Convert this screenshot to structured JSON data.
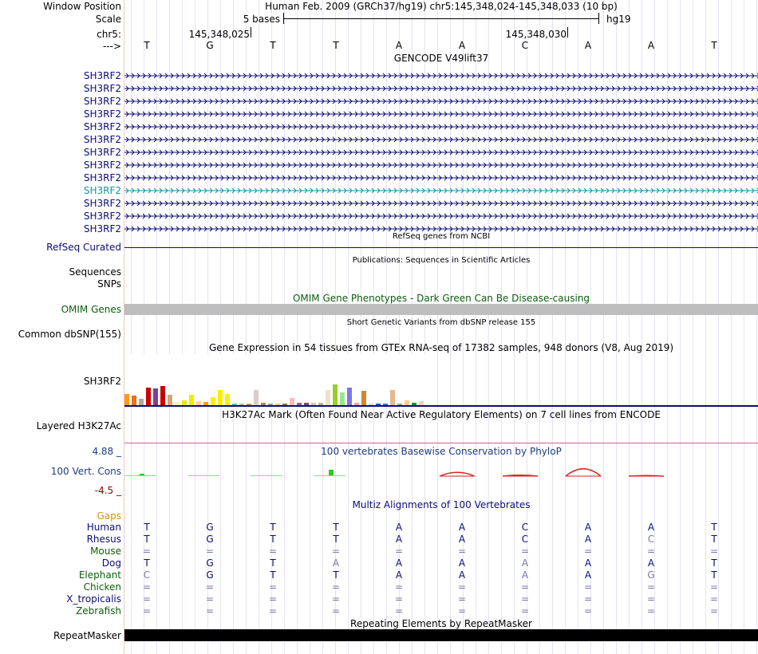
{
  "header": {
    "window_position_label": "Window Position",
    "window_position_value": "Human Feb. 2009 (GRCh37/hg19)   chr5:145,348,024-145,348,033 (10 bp)",
    "scale_label": "Scale",
    "scale_text": "5 bases",
    "scale_assembly": "hg19",
    "chrom_label": "chr5:",
    "pos_left": "145,348,025",
    "pos_right": "145,348,030",
    "strand_label": "--->",
    "bases": [
      "T",
      "G",
      "T",
      "T",
      "A",
      "A",
      "C",
      "A",
      "A",
      "T"
    ]
  },
  "gencode": {
    "title": "GENCODE V49lift37",
    "rows": [
      {
        "label": "SH3RF2",
        "highlight": false
      },
      {
        "label": "SH3RF2",
        "highlight": false
      },
      {
        "label": "SH3RF2",
        "highlight": false
      },
      {
        "label": "SH3RF2",
        "highlight": false
      },
      {
        "label": "SH3RF2",
        "highlight": false
      },
      {
        "label": "SH3RF2",
        "highlight": false
      },
      {
        "label": "SH3RF2",
        "highlight": false
      },
      {
        "label": "SH3RF2",
        "highlight": false
      },
      {
        "label": "SH3RF2",
        "highlight": false
      },
      {
        "label": "SH3RF2",
        "highlight": true
      },
      {
        "label": "SH3RF2",
        "highlight": false
      },
      {
        "label": "SH3RF2",
        "highlight": false
      },
      {
        "label": "SH3RF2",
        "highlight": false
      }
    ],
    "color": "#0c0c78",
    "highlight_color": "#1a8fa8"
  },
  "refseq": {
    "title": "RefSeq genes from NCBI",
    "label": "RefSeq Curated",
    "color": "#0c0c78"
  },
  "publications": {
    "title": "Publications: Sequences in Scientific Articles",
    "label1": "Sequences",
    "label2": "SNPs"
  },
  "omim": {
    "title": "OMIM Gene Phenotypes - Dark Green Can Be Disease-causing",
    "label": "OMIM Genes",
    "color": "#0b5e0b",
    "bar_color": "#bebebe"
  },
  "dbsnp": {
    "title": "Short Genetic Variants from dbSNP release 155",
    "label": "Common dbSNP(155)"
  },
  "gtex": {
    "title": "Gene Expression in 54 tissues from GTEx RNA-seq of 17382 samples, 948 donors (V8, Aug 2019)",
    "label": "SH3RF2",
    "levels": [
      0.22,
      0.18,
      0.12,
      0.34,
      0.33,
      0.38,
      0.2,
      0.06,
      0.1,
      0.2,
      0.08,
      0.07,
      0.15,
      0.3,
      0.22,
      0.03,
      0.03,
      0.03,
      0.3,
      0.04,
      0.03,
      0.03,
      0.03,
      0.14,
      0.04,
      0.05,
      0.05,
      0.05,
      0.3,
      0.4,
      0.25,
      0.34,
      0.04,
      0.28,
      0.03,
      0.02,
      0.02,
      0.3,
      0.02,
      0.1,
      0.04,
      0.08,
      0.18,
      0.08,
      0.08,
      0.5,
      0.04,
      0.48,
      0.02,
      0.03,
      0.05,
      0.65,
      0.32,
      0.52,
      0.34,
      0.1,
      0.03,
      0.1,
      0.03,
      0.03,
      0.03,
      0.15,
      0.06,
      0.3,
      0.12,
      0.15,
      0.18,
      0.04,
      0.04,
      0.28,
      0.1,
      0.26,
      0.1,
      0.02,
      0.05,
      0.08,
      0.05,
      0.03,
      0.3,
      0.1,
      0.55,
      0.55,
      0.02,
      0.03,
      0.3,
      0.12,
      0.05,
      0.02,
      0.02,
      0.3,
      0.04,
      0.02,
      0.03,
      0.58,
      0.28,
      0.72,
      0.28,
      0.3,
      0.08,
      0.03,
      0.02,
      0.02,
      0.03,
      0.03,
      0.03,
      0.02,
      0.02,
      0.45,
      0.02,
      0.48
    ],
    "colors": [
      "#ff9a19",
      "#ee6c26",
      "#aaaaaa",
      "#cc0000",
      "#7f3f98",
      "#cc0000",
      "#d2a679",
      "#f5f5aa",
      "#e8e800",
      "#eeee00",
      "#ffd780",
      "#ff9a19",
      "#ffee00",
      "#ffee00",
      "#ffee00",
      "#33cccc",
      "#bbbbbb",
      "#cc9966",
      "#ddcccc",
      "#a68a66",
      "#8f9dba",
      "#f0c896",
      "#8b7355",
      "#ffb6c1",
      "#9b59b6",
      "#7f3f98",
      "#d4c0d4",
      "#b3b3b3",
      "#f0e0d0",
      "#99cc33",
      "#9be390",
      "#7d74e6",
      "#ff99cc",
      "#cc8833",
      "#c2e0c2",
      "#0056ff",
      "#3377dd",
      "#e4b890",
      "#a0a0a0",
      "#ffcc99",
      "#009944",
      "#e8d4c8"
    ]
  },
  "h3k27ac": {
    "title": "H3K27Ac Mark (Often Found Near Active Regulatory Elements) on 7 cell lines from ENCODE",
    "label": "Layered H3K27Ac",
    "line_color": "#c8648c"
  },
  "phylop": {
    "title": "100 vertebrates Basewise Conservation by PhyloP",
    "label": "100 Vert. Cons",
    "max_label": "4.88 _",
    "min_label": "-4.5 _",
    "label_color": "#1e3c82",
    "max_color": "#1e3c82",
    "min_color": "#8b0000",
    "values": [
      0.6,
      0.05,
      0.2,
      1.6,
      0.0,
      -1.2,
      -0.3,
      -2.3,
      -0.2,
      0.0
    ]
  },
  "multiz": {
    "title": "Multiz Alignments of 100 Vertebrates",
    "gaps_label": "Gaps",
    "gaps_color": "#dc8c14",
    "species": [
      {
        "name": "Human",
        "color": "#0c0c78",
        "bases": [
          "T",
          "G",
          "T",
          "T",
          "A",
          "A",
          "C",
          "A",
          "A",
          "T"
        ]
      },
      {
        "name": "Rhesus",
        "color": "#0c0c78",
        "bases": [
          "T",
          "G",
          "T",
          "T",
          "A",
          "A",
          "C",
          "A",
          "C",
          "T"
        ]
      },
      {
        "name": "Mouse",
        "color": "#0b5e0b",
        "bases": [
          "=",
          "=",
          "=",
          "=",
          "=",
          "=",
          "=",
          "=",
          "=",
          "="
        ]
      },
      {
        "name": "Dog",
        "color": "#0c0c78",
        "bases": [
          "T",
          "G",
          "T",
          "A",
          "A",
          "A",
          "A",
          "A",
          "A",
          "T"
        ]
      },
      {
        "name": "Elephant",
        "color": "#0b5e0b",
        "bases": [
          "C",
          "G",
          "T",
          "T",
          "A",
          "A",
          "A",
          "A",
          "G",
          "T"
        ]
      },
      {
        "name": "Chicken",
        "color": "#0b5e0b",
        "bases": [
          "=",
          "=",
          "=",
          "=",
          "=",
          "=",
          "=",
          "=",
          "=",
          "="
        ]
      },
      {
        "name": "X_tropicalis",
        "color": "#0c0c78",
        "bases": [
          "=",
          "=",
          "=",
          "=",
          "=",
          "=",
          "=",
          "=",
          "=",
          "="
        ]
      },
      {
        "name": "Zebrafish",
        "color": "#0b5e0b",
        "bases": [
          "=",
          "=",
          "=",
          "=",
          "=",
          "=",
          "=",
          "=",
          "=",
          "="
        ]
      }
    ]
  },
  "repeatmasker": {
    "title": "Repeating Elements by RepeatMasker",
    "label": "RepeatMasker"
  }
}
